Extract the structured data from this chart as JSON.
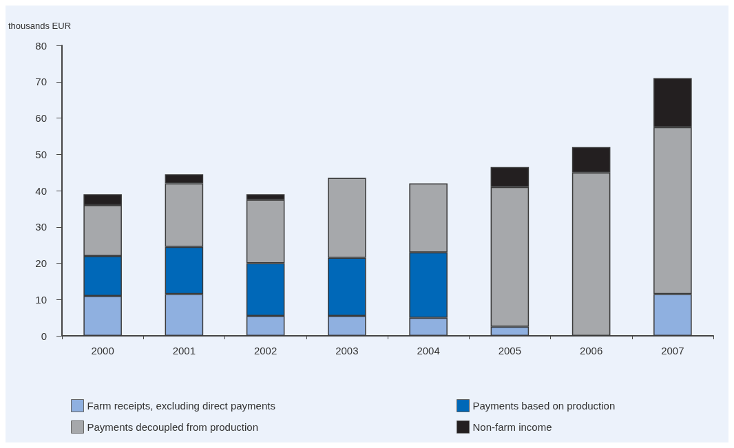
{
  "chart_data": {
    "type": "bar",
    "stacked": true,
    "ylabel": "thousands EUR",
    "categories": [
      "2000",
      "2001",
      "2002",
      "2003",
      "2004",
      "2005",
      "2006",
      "2007"
    ],
    "series": [
      {
        "name": "Farm receipts, excluding direct payments",
        "color": "#8fb0e0",
        "values": [
          11,
          11.5,
          5.5,
          5.5,
          5,
          2.5,
          0,
          11.5
        ]
      },
      {
        "name": "Payments based on production",
        "color": "#0068b8",
        "values": [
          11,
          13,
          14.5,
          16,
          18,
          0,
          0,
          0
        ]
      },
      {
        "name": "Payments decoupled from production",
        "color": "#a6a8ab",
        "values": [
          14,
          17.5,
          17.5,
          22,
          19,
          38.5,
          45,
          46
        ]
      },
      {
        "name": "Non-farm income",
        "color": "#231f20",
        "values": [
          3,
          2.5,
          1.5,
          0,
          0,
          5.5,
          7,
          13.5
        ]
      }
    ],
    "ylim": [
      0,
      80
    ],
    "yticks": [
      0,
      10,
      20,
      30,
      40,
      50,
      60,
      70,
      80
    ],
    "grid": false,
    "legend": "bottom"
  }
}
